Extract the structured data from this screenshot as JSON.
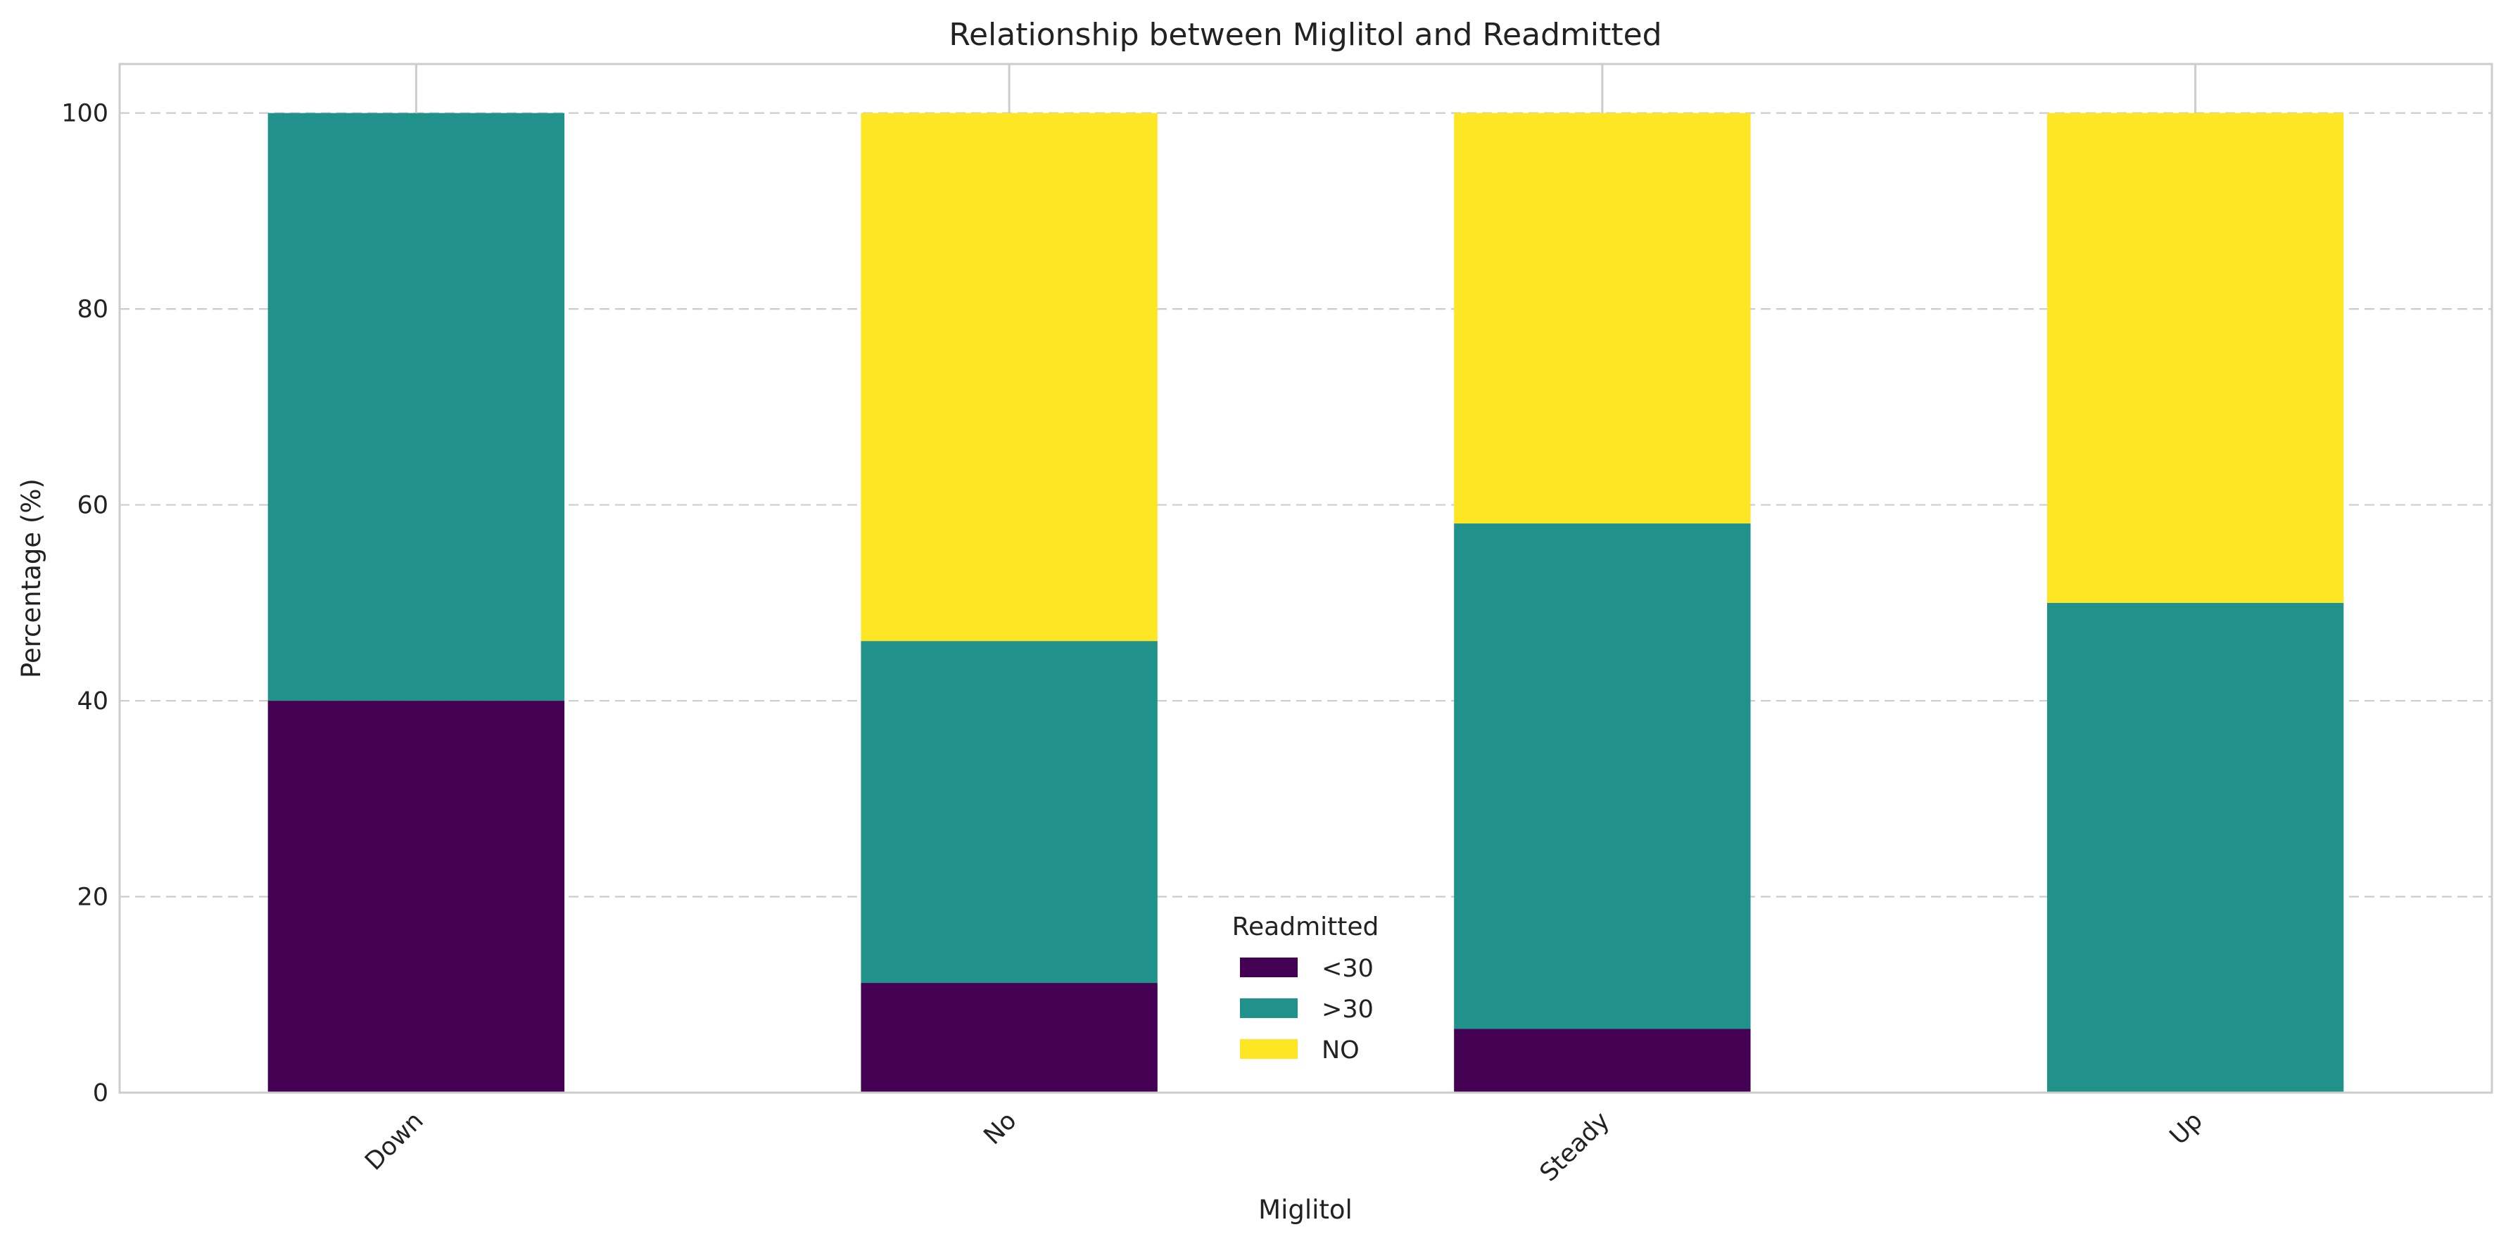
{
  "chart_data": {
    "type": "bar",
    "stacked": true,
    "title": "Relationship between Miglitol and Readmitted",
    "xlabel": "Miglitol",
    "ylabel": "Percentage (%)",
    "categories": [
      "Down",
      "No",
      "Steady",
      "Up"
    ],
    "series": [
      {
        "name": "<30",
        "color": "#440154",
        "values": [
          40.0,
          11.2,
          6.5,
          0.0
        ]
      },
      {
        "name": ">30",
        "color": "#21918c",
        "values": [
          60.0,
          34.9,
          51.6,
          50.0
        ]
      },
      {
        "name": "NO",
        "color": "#fde725",
        "values": [
          0.0,
          53.9,
          41.9,
          50.0
        ]
      }
    ],
    "ylim": [
      0,
      105
    ],
    "yticks": [
      0,
      20,
      40,
      60,
      80,
      100
    ],
    "grid": true,
    "legend": {
      "title": "Readmitted",
      "placement": "lower-center"
    }
  }
}
